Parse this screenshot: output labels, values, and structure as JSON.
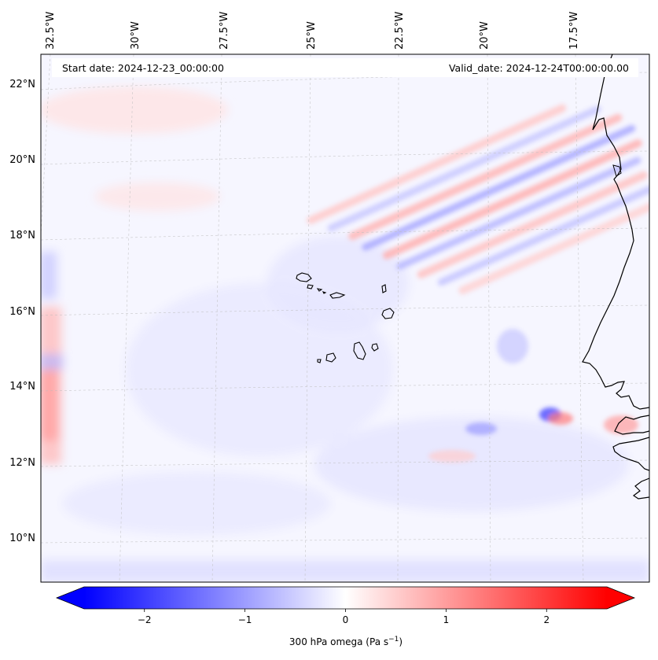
{
  "header": {
    "start_date": "Start date: 2024-12-23_00:00:00",
    "valid_date": "Valid_date: 2024-12-24T00:00:00.00"
  },
  "longitude_labels": [
    "32.5°W",
    "30°W",
    "27.5°W",
    "25°W",
    "22.5°W",
    "20°W",
    "17.5°W"
  ],
  "latitude_labels": [
    "22°N",
    "20°N",
    "18°N",
    "16°N",
    "14°N",
    "12°N",
    "10°N"
  ],
  "colorbar": {
    "ticks": [
      "−2",
      "−1",
      "0",
      "1",
      "2"
    ],
    "tick_values": [
      -2,
      -1,
      0,
      1,
      2
    ],
    "range": [
      -2.6,
      2.6
    ],
    "label_main": "300 hPa omega (Pa s",
    "label_sup": "−1",
    "label_end": ")",
    "color_negative": "#0000ff",
    "color_zero": "#ffffff",
    "color_positive": "#ff0000"
  },
  "colors": {
    "coastline": "#000000",
    "gridline": "#bdbdbd",
    "background_field": "#f7f7ff"
  }
}
